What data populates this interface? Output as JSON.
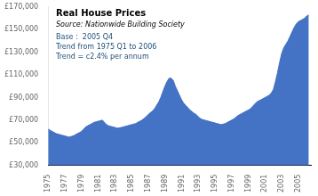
{
  "chart_data": {
    "type": "area",
    "title": "Real House Prices",
    "subtitle": "Source: Nationwide Building Society",
    "annotations": [
      "Base :  2005 Q4",
      "Trend from 1975 Q1 to 2006",
      "Trend = c2.4% per annum"
    ],
    "color": "#4472c4",
    "grid": false,
    "xlim": [
      1975,
      2006.5
    ],
    "xticks": [
      1975,
      1977,
      1979,
      1981,
      1983,
      1985,
      1987,
      1989,
      1991,
      1993,
      1995,
      1997,
      1999,
      2001,
      2003,
      2005
    ],
    "ylim": [
      30000,
      170000
    ],
    "yticks": [
      {
        "value": 30000,
        "label": "£30,000"
      },
      {
        "value": 50000,
        "label": "£50,000"
      },
      {
        "value": 70000,
        "label": "£70,000"
      },
      {
        "value": 90000,
        "label": "£90,000"
      },
      {
        "value": 110000,
        "label": "£110,000"
      },
      {
        "value": 130000,
        "label": "£130,000"
      },
      {
        "value": 150000,
        "label": "£150,000"
      },
      {
        "value": 170000,
        "label": "£170,000"
      }
    ],
    "x": [
      1975,
      1975.25,
      1975.5,
      1975.75,
      1976,
      1976.25,
      1976.5,
      1976.75,
      1977,
      1977.25,
      1977.5,
      1977.75,
      1978,
      1978.25,
      1978.5,
      1978.75,
      1979,
      1979.25,
      1979.5,
      1979.75,
      1980,
      1980.25,
      1980.5,
      1980.75,
      1981,
      1981.25,
      1981.5,
      1981.75,
      1982,
      1982.25,
      1982.5,
      1982.75,
      1983,
      1983.25,
      1983.5,
      1983.75,
      1984,
      1984.25,
      1984.5,
      1984.75,
      1985,
      1985.25,
      1985.5,
      1985.75,
      1986,
      1986.25,
      1986.5,
      1986.75,
      1987,
      1987.25,
      1987.5,
      1987.75,
      1988,
      1988.25,
      1988.5,
      1988.75,
      1989,
      1989.25,
      1989.5,
      1989.75,
      1990,
      1990.25,
      1990.5,
      1990.75,
      1991,
      1991.25,
      1991.5,
      1991.75,
      1992,
      1992.25,
      1992.5,
      1992.75,
      1993,
      1993.25,
      1993.5,
      1993.75,
      1994,
      1994.25,
      1994.5,
      1994.75,
      1995,
      1995.25,
      1995.5,
      1995.75,
      1996,
      1996.25,
      1996.5,
      1996.75,
      1997,
      1997.25,
      1997.5,
      1997.75,
      1998,
      1998.25,
      1998.5,
      1998.75,
      1999,
      1999.25,
      1999.5,
      1999.75,
      2000,
      2000.25,
      2000.5,
      2000.75,
      2001,
      2001.25,
      2001.5,
      2001.75,
      2002,
      2002.25,
      2002.5,
      2002.75,
      2003,
      2003.25,
      2003.5,
      2003.75,
      2004,
      2004.25,
      2004.5,
      2004.75,
      2005,
      2005.25,
      2005.5,
      2005.75,
      2006,
      2006.25
    ],
    "values": [
      62000,
      61000,
      60000,
      59000,
      58000,
      57500,
      57000,
      56500,
      56000,
      55500,
      55000,
      55500,
      56000,
      57000,
      58000,
      59000,
      60000,
      62000,
      64000,
      65000,
      66000,
      67000,
      68000,
      68500,
      69000,
      69500,
      70000,
      68000,
      66000,
      65000,
      64500,
      64000,
      63500,
      63000,
      63000,
      63500,
      64000,
      64500,
      65000,
      65500,
      66000,
      66500,
      67000,
      68000,
      69000,
      70000,
      71500,
      73000,
      75000,
      76500,
      78000,
      80000,
      83000,
      86000,
      90000,
      95000,
      100000,
      104000,
      107000,
      107000,
      105000,
      100000,
      96000,
      92000,
      88000,
      85000,
      83000,
      81000,
      79000,
      77500,
      76000,
      75000,
      73000,
      71500,
      70500,
      70000,
      69500,
      69000,
      68500,
      68000,
      67500,
      67000,
      66500,
      66000,
      66500,
      67000,
      68000,
      69000,
      70000,
      71000,
      72500,
      74000,
      75000,
      76000,
      77000,
      78000,
      79000,
      80000,
      82000,
      84000,
      86000,
      87000,
      88000,
      89000,
      90000,
      91000,
      92000,
      94000,
      97000,
      104000,
      112000,
      121000,
      129000,
      134000,
      137000,
      140000,
      144000,
      148000,
      152000,
      155000,
      157000,
      158000,
      159000,
      160000,
      162000,
      163000
    ]
  }
}
